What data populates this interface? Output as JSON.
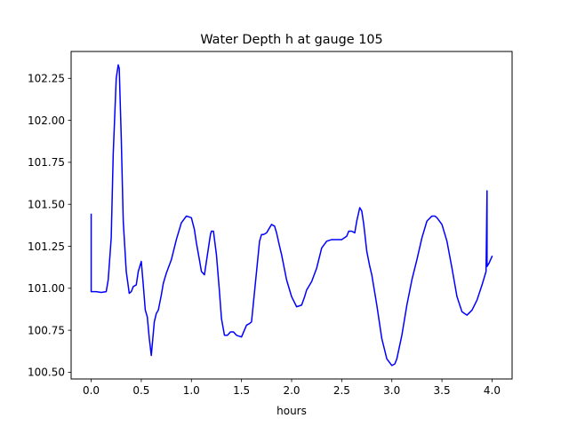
{
  "chart_data": {
    "type": "line",
    "title": "Water Depth h at gauge 105",
    "xlabel": "hours",
    "ylabel": "",
    "xlim": [
      -0.2,
      4.2
    ],
    "ylim": [
      100.46,
      102.41
    ],
    "xticks": [
      0.0,
      0.5,
      1.0,
      1.5,
      2.0,
      2.5,
      3.0,
      3.5,
      4.0
    ],
    "xtick_labels": [
      "0.0",
      "0.5",
      "1.0",
      "1.5",
      "2.0",
      "2.5",
      "3.0",
      "3.5",
      "4.0"
    ],
    "yticks": [
      100.5,
      100.75,
      101.0,
      101.25,
      101.5,
      101.75,
      102.0,
      102.25
    ],
    "ytick_labels": [
      "100.50",
      "100.75",
      "101.00",
      "101.25",
      "101.50",
      "101.75",
      "102.00",
      "102.25"
    ],
    "grid": false,
    "series": [
      {
        "color": "#0000ff",
        "x": [
          0.0,
          0.0,
          0.01,
          0.05,
          0.1,
          0.15,
          0.17,
          0.2,
          0.22,
          0.25,
          0.27,
          0.28,
          0.3,
          0.32,
          0.35,
          0.38,
          0.4,
          0.42,
          0.45,
          0.47,
          0.5,
          0.52,
          0.54,
          0.56,
          0.58,
          0.6,
          0.63,
          0.65,
          0.67,
          0.68,
          0.7,
          0.72,
          0.75,
          0.8,
          0.85,
          0.9,
          0.95,
          1.0,
          1.03,
          1.05,
          1.08,
          1.1,
          1.13,
          1.16,
          1.19,
          1.2,
          1.22,
          1.25,
          1.28,
          1.3,
          1.33,
          1.36,
          1.39,
          1.42,
          1.45,
          1.5,
          1.55,
          1.58,
          1.6,
          1.65,
          1.68,
          1.7,
          1.72,
          1.75,
          1.78,
          1.8,
          1.83,
          1.85,
          1.88,
          1.9,
          1.95,
          2.0,
          2.05,
          2.1,
          2.13,
          2.15,
          2.2,
          2.25,
          2.3,
          2.35,
          2.4,
          2.45,
          2.5,
          2.55,
          2.57,
          2.6,
          2.63,
          2.65,
          2.68,
          2.7,
          2.72,
          2.75,
          2.78,
          2.8,
          2.85,
          2.9,
          2.95,
          3.0,
          3.03,
          3.05,
          3.1,
          3.15,
          3.2,
          3.25,
          3.3,
          3.35,
          3.4,
          3.43,
          3.45,
          3.5,
          3.55,
          3.6,
          3.65,
          3.7,
          3.75,
          3.8,
          3.85,
          3.9,
          3.94,
          3.95,
          3.95,
          3.95,
          3.97,
          4.0
        ],
        "y": [
          101.44,
          100.98,
          100.98,
          100.98,
          100.975,
          100.98,
          101.05,
          101.3,
          101.8,
          102.25,
          102.33,
          102.31,
          101.9,
          101.4,
          101.1,
          100.97,
          100.98,
          101.01,
          101.02,
          101.1,
          101.16,
          101.02,
          100.87,
          100.83,
          100.7,
          100.6,
          100.8,
          100.85,
          100.87,
          100.9,
          100.96,
          101.03,
          101.09,
          101.17,
          101.29,
          101.39,
          101.43,
          101.42,
          101.35,
          101.27,
          101.17,
          101.1,
          101.08,
          101.2,
          101.32,
          101.34,
          101.34,
          101.2,
          100.98,
          100.82,
          100.72,
          100.72,
          100.74,
          100.74,
          100.72,
          100.71,
          100.78,
          100.79,
          100.8,
          101.1,
          101.28,
          101.32,
          101.32,
          101.33,
          101.36,
          101.38,
          101.37,
          101.33,
          101.25,
          101.2,
          101.05,
          100.95,
          100.89,
          100.9,
          100.95,
          100.99,
          101.04,
          101.12,
          101.24,
          101.28,
          101.29,
          101.29,
          101.29,
          101.31,
          101.34,
          101.34,
          101.33,
          101.4,
          101.48,
          101.46,
          101.38,
          101.22,
          101.13,
          101.08,
          100.9,
          100.7,
          100.58,
          100.54,
          100.55,
          100.58,
          100.72,
          100.9,
          101.05,
          101.17,
          101.3,
          101.4,
          101.43,
          101.43,
          101.42,
          101.38,
          101.28,
          101.12,
          100.95,
          100.86,
          100.84,
          100.87,
          100.93,
          101.02,
          101.1,
          101.58,
          101.58,
          101.13,
          101.15,
          101.19
        ]
      }
    ]
  }
}
